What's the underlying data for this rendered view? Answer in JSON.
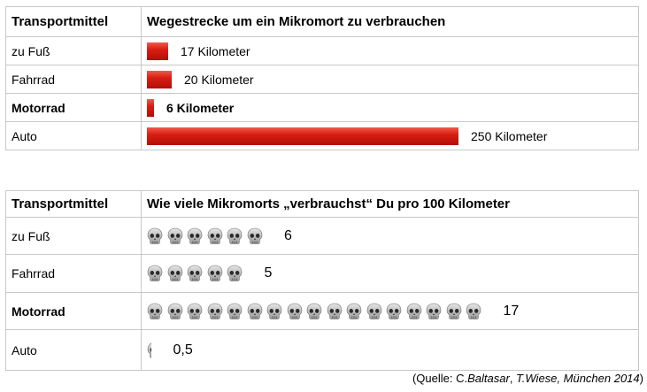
{
  "chart_data": [
    {
      "type": "bar",
      "header_left": "Transportmittel",
      "header_right": "Wegestrecke um ein Mikromort zu verbrauchen",
      "categories": [
        "zu Fuß",
        "Fahrrad",
        "Motorrad",
        "Auto"
      ],
      "values": [
        17,
        20,
        6,
        250
      ],
      "value_labels": [
        "17 Kilometer",
        "20 Kilometer",
        "6 Kilometer",
        "250 Kilometer"
      ],
      "bold_rows": [
        "Motorrad"
      ],
      "bar_color": "#d81e12",
      "xlim": [
        0,
        250
      ]
    },
    {
      "type": "table",
      "header_left": "Transportmittel",
      "header_right": "Wie viele Mikromorts „verbrauchst“ Du pro 100 Kilometer",
      "categories": [
        "zu Fuß",
        "Fahrrad",
        "Motorrad",
        "Auto"
      ],
      "values": [
        6,
        5,
        17,
        0.5
      ],
      "value_labels": [
        "6",
        "5",
        "17",
        "0,5"
      ],
      "bold_rows": [
        "Motorrad"
      ],
      "icon": "skull-icon"
    }
  ],
  "source": {
    "prefix": "(Quelle: C.",
    "author1": "Baltasar",
    "sep": ", ",
    "author2": "T.Wiese, München 2014",
    "suffix": ")"
  }
}
